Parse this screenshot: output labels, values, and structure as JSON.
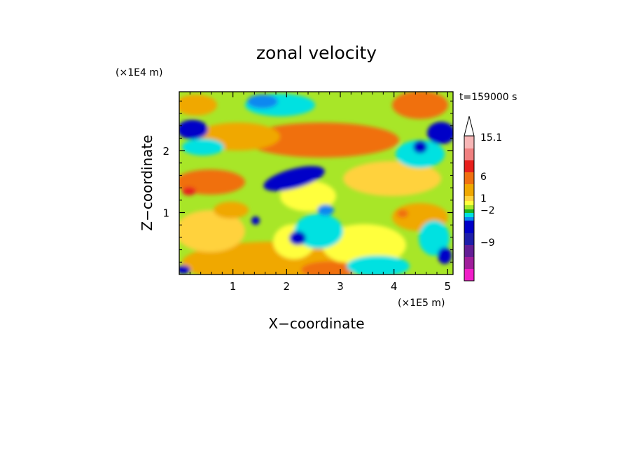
{
  "chart_data": {
    "type": "heatmap",
    "title": "zonal velocity",
    "xlabel": "X−coordinate",
    "ylabel": "Z−coordinate",
    "x_scale_label": "(×1E5 m)",
    "y_scale_label": "(×1E4 m)",
    "time_label": "t=159000 s",
    "x_ticks": [
      "1",
      "2",
      "3",
      "4",
      "5"
    ],
    "x_tick_values": [
      1,
      2,
      3,
      4,
      5
    ],
    "y_ticks": [
      "1",
      "2"
    ],
    "y_tick_values": [
      1,
      2
    ],
    "xlim": [
      0,
      5.1
    ],
    "ylim": [
      0,
      2.95
    ],
    "colorbar": {
      "labels": [
        "15.1",
        "6",
        "1",
        "−2",
        "−9"
      ],
      "colors": [
        "#ffffff",
        "#f7b6b6",
        "#f08080",
        "#e8201c",
        "#f07010",
        "#f0a800",
        "#ffd23c",
        "#ffff3c",
        "#a8e628",
        "#1eb41e",
        "#00e1e1",
        "#0a88f0",
        "#0000c8",
        "#1e1eaa",
        "#641e96",
        "#a01e9b",
        "#f01ec8"
      ]
    }
  }
}
